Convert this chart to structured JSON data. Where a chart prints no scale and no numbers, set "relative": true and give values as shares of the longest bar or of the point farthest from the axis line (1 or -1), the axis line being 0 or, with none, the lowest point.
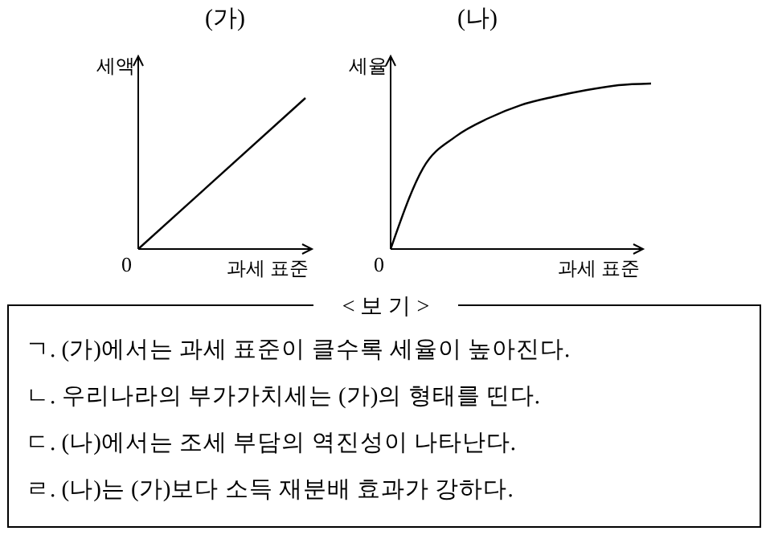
{
  "chart_data": [
    {
      "type": "line",
      "title": "(가)",
      "ylabel": "세액",
      "xlabel": "과세 표준",
      "annotations": [
        "0"
      ],
      "relative": true,
      "categories": [
        null,
        null
      ],
      "values": [
        0,
        1
      ],
      "color": "#000000"
    },
    {
      "type": "line",
      "title": "(나)",
      "ylabel": "세율",
      "xlabel": "과세 표준",
      "annotations": [
        "0"
      ],
      "relative": true,
      "categories": [
        null,
        null,
        null,
        null,
        null,
        null,
        null,
        null,
        null
      ],
      "values": [
        0,
        0.49,
        0.68,
        0.79,
        0.87,
        0.92,
        0.96,
        0.99,
        1
      ],
      "color": "#000000"
    },
    {
      "type": "other",
      "title": "< 보 기 >",
      "annotations": [
        "ㄱ. (가)에서는 과세 표준이 클수록 세율이 높아진다.",
        "ㄴ. 우리나라의 부가가치세는 (가)의 형태를 띤다.",
        "ㄷ. (나)에서는 조세 부담의 역진성이 나타난다.",
        "ㄹ. (나)는 (가)보다 소득 재분배 효과가 강하다."
      ]
    }
  ]
}
